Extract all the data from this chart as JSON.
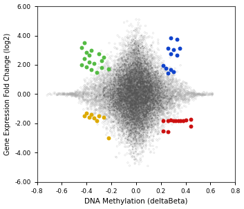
{
  "title": "",
  "xlabel": "DNA Methylation (deltaBeta)",
  "ylabel": "Gene Expression Fold Change (log2)",
  "xlim": [
    -0.8,
    0.8
  ],
  "ylim": [
    -6.0,
    6.0
  ],
  "xticks": [
    -0.8,
    -0.6,
    -0.4,
    -0.2,
    0.0,
    0.2,
    0.4,
    0.6,
    0.8
  ],
  "yticks": [
    -6.0,
    -4.0,
    -2.0,
    0.0,
    2.0,
    4.0,
    6.0
  ],
  "background_color": "#ffffff",
  "gray_open_color": "#aaaaaa",
  "gray_filled_color": "#555555",
  "gray_dot_size_open": 3,
  "gray_dot_size_filled": 2,
  "colored_dot_size": 18,
  "green_dots": [
    [
      -0.42,
      3.5
    ],
    [
      -0.44,
      3.2
    ],
    [
      -0.4,
      2.85
    ],
    [
      -0.38,
      2.65
    ],
    [
      -0.42,
      2.4
    ],
    [
      -0.38,
      2.2
    ],
    [
      -0.44,
      2.0
    ],
    [
      -0.4,
      1.85
    ],
    [
      -0.36,
      1.65
    ],
    [
      -0.32,
      1.5
    ],
    [
      -0.3,
      2.75
    ],
    [
      -0.26,
      2.5
    ],
    [
      -0.34,
      2.1
    ],
    [
      -0.28,
      1.8
    ],
    [
      -0.22,
      1.7
    ],
    [
      -0.36,
      3.0
    ],
    [
      -0.28,
      2.3
    ]
  ],
  "blue_dots": [
    [
      0.28,
      3.85
    ],
    [
      0.33,
      3.75
    ],
    [
      0.26,
      3.15
    ],
    [
      0.3,
      3.05
    ],
    [
      0.35,
      3.15
    ],
    [
      0.28,
      2.75
    ],
    [
      0.33,
      2.65
    ],
    [
      0.24,
      1.75
    ],
    [
      0.28,
      1.65
    ],
    [
      0.3,
      1.55
    ],
    [
      0.26,
      1.45
    ],
    [
      0.22,
      1.95
    ]
  ],
  "orange_dots": [
    [
      -0.4,
      -1.3
    ],
    [
      -0.36,
      -1.4
    ],
    [
      -0.42,
      -1.5
    ],
    [
      -0.38,
      -1.6
    ],
    [
      -0.34,
      -1.65
    ],
    [
      -0.3,
      -1.5
    ],
    [
      -0.26,
      -1.6
    ],
    [
      -0.32,
      -1.8
    ],
    [
      -0.22,
      -3.0
    ]
  ],
  "red_dots": [
    [
      0.22,
      -1.8
    ],
    [
      0.26,
      -1.8
    ],
    [
      0.28,
      -1.75
    ],
    [
      0.3,
      -1.8
    ],
    [
      0.32,
      -1.8
    ],
    [
      0.34,
      -1.8
    ],
    [
      0.36,
      -1.8
    ],
    [
      0.38,
      -1.8
    ],
    [
      0.4,
      -1.75
    ],
    [
      0.22,
      -2.5
    ],
    [
      0.26,
      -2.55
    ],
    [
      0.44,
      -1.7
    ],
    [
      0.44,
      -2.2
    ]
  ],
  "green_color": "#55bb44",
  "blue_color": "#1144cc",
  "orange_color": "#ddaa00",
  "red_color": "#cc1111",
  "seed": 42,
  "n_filled": 12000,
  "n_open_sparse": 1500
}
